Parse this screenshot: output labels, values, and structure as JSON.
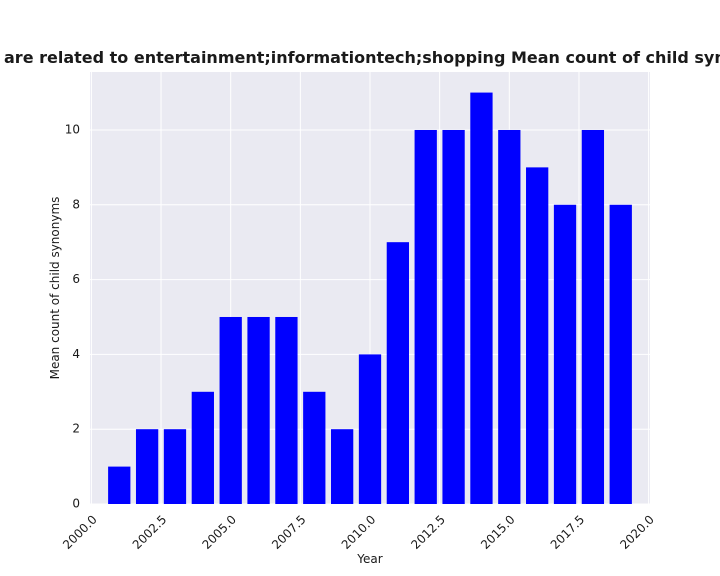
{
  "chart_data": {
    "type": "bar",
    "title": "are related to entertainment;informationtech;shopping Mean count of child synonyms in priva",
    "xlabel": "Year",
    "ylabel": "Mean count of child synonyms",
    "x": [
      2001,
      2002,
      2003,
      2004,
      2005,
      2006,
      2007,
      2008,
      2009,
      2010,
      2011,
      2012,
      2013,
      2014,
      2015,
      2016,
      2017,
      2018,
      2019
    ],
    "values": [
      1,
      2,
      2,
      3,
      5,
      5,
      5,
      3,
      2,
      4,
      7,
      10,
      10,
      11,
      10,
      9,
      8,
      10,
      8
    ],
    "xlim": [
      1999.95,
      2020.05
    ],
    "ylim": [
      0,
      11.55
    ],
    "xticks": [
      2000.0,
      2002.5,
      2005.0,
      2007.5,
      2010.0,
      2012.5,
      2015.0,
      2017.5,
      2020.0
    ],
    "xtick_labels": [
      "2000.0",
      "2002.5",
      "2005.0",
      "2007.5",
      "2010.0",
      "2012.5",
      "2015.0",
      "2017.5",
      "2020.0"
    ],
    "yticks": [
      0,
      2,
      4,
      6,
      8,
      10
    ],
    "ytick_labels": [
      "0",
      "2",
      "4",
      "6",
      "8",
      "10"
    ],
    "bar_width": 0.8,
    "bar_color": "#0000ff",
    "background_color": "#eaeaf2",
    "grid_color": "#ffffff",
    "grid": true
  }
}
